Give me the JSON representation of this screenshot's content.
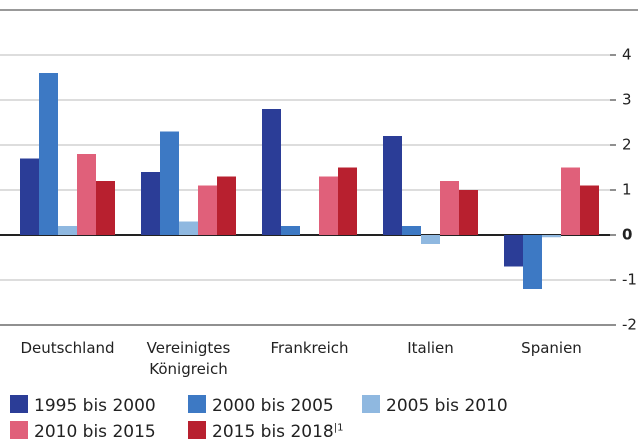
{
  "chart_data": {
    "type": "bar",
    "categories": [
      "Deutschland",
      "Vereinigtes Königreich",
      "Frankreich",
      "Italien",
      "Spanien"
    ],
    "series": [
      {
        "name": "1995 bis 2000",
        "color": "#2b3d97",
        "values": [
          1.7,
          1.4,
          2.8,
          2.2,
          -0.7
        ]
      },
      {
        "name": "2000 bis 2005",
        "color": "#3d79c4",
        "values": [
          3.6,
          2.3,
          0.2,
          0.2,
          -1.2
        ]
      },
      {
        "name": "2005 bis 2010",
        "color": "#8fb8e0",
        "values": [
          0.2,
          0.3,
          0,
          -0.2,
          -0.05
        ]
      },
      {
        "name": "2010 bis 2015",
        "color": "#e0607a",
        "values": [
          1.8,
          1.1,
          1.3,
          1.2,
          1.5
        ]
      },
      {
        "name": "2015 bis 2018",
        "color": "#b8202f",
        "values": [
          1.2,
          1.3,
          1.5,
          1.0,
          1.1
        ]
      }
    ],
    "legend_footnote": "|1",
    "ylim": [
      -2,
      5
    ],
    "yticks": [
      -2,
      -1,
      0,
      1,
      2,
      3,
      4
    ],
    "grid": true
  }
}
